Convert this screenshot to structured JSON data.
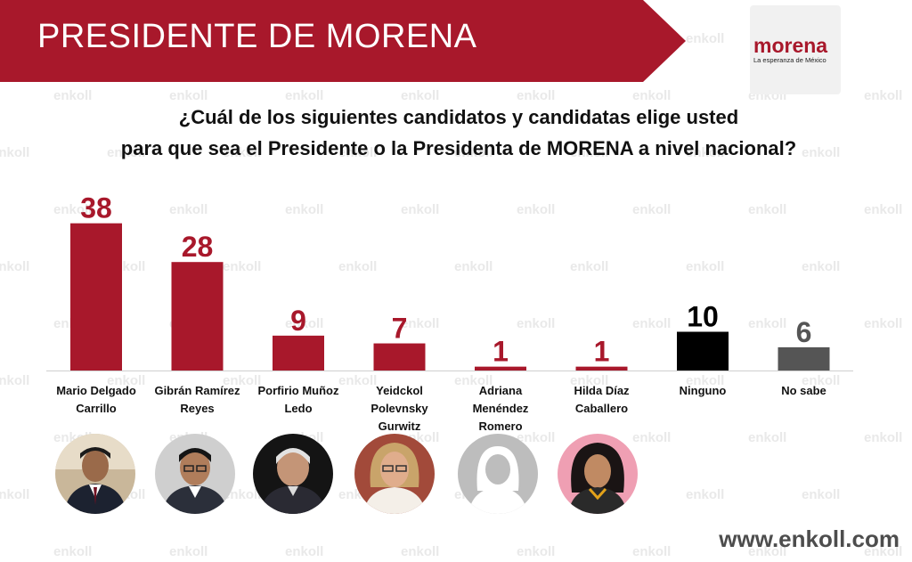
{
  "header": {
    "title": "PRESIDENTE DE MORENA"
  },
  "logo": {
    "name": "morena",
    "tagline": "La esperanza de México"
  },
  "question": {
    "line1": "¿Cuál de los siguientes candidatos y candidatas elige usted",
    "line2": "para que sea el Presidente o la Presidenta de MORENA a nivel nacional?"
  },
  "chart_data": {
    "type": "bar",
    "categories": [
      [
        "Mario Delgado",
        "Carrillo"
      ],
      [
        "Gibrán Ramírez",
        "Reyes"
      ],
      [
        "Porfirio Muñoz",
        "Ledo"
      ],
      [
        "Yeidckol",
        "Polevnsky",
        "Gurwitz"
      ],
      [
        "Adriana",
        "Menéndez",
        "Romero"
      ],
      [
        "Hilda Díaz",
        "Caballero"
      ],
      [
        "Ninguno"
      ],
      [
        "No sabe"
      ]
    ],
    "values": [
      38,
      28,
      9,
      7,
      1,
      1,
      10,
      6
    ],
    "colors": [
      "#a8182b",
      "#a8182b",
      "#a8182b",
      "#a8182b",
      "#a8182b",
      "#a8182b",
      "#000000",
      "#555555"
    ],
    "label_colors": [
      "#a8182b",
      "#a8182b",
      "#a8182b",
      "#a8182b",
      "#a8182b",
      "#a8182b",
      "#000000",
      "#555555"
    ],
    "ylim": [
      0,
      40
    ],
    "grid": false,
    "legend": "none"
  },
  "watermark": {
    "text": "enkoll"
  },
  "footer": {
    "website": "www.enkoll.com"
  },
  "colors": {
    "brand": "#a8182b",
    "banner": "#a8182b"
  }
}
